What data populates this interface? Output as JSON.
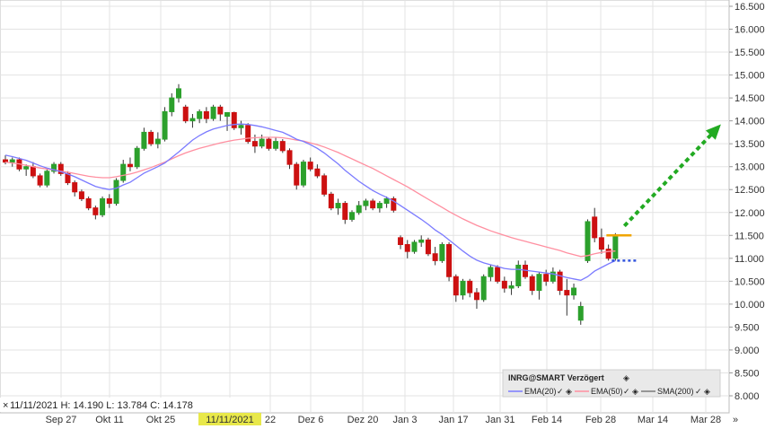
{
  "chart_data": {
    "type": "candlestick",
    "y_ticks": [
      "16.500",
      "16.000",
      "15.500",
      "15.000",
      "14.500",
      "14.000",
      "13.500",
      "13.000",
      "12.500",
      "12.000",
      "11.500",
      "11.000",
      "10.500",
      "10.000",
      "9.500",
      "9.000",
      "8.500",
      "8.000"
    ],
    "ylim": [
      8.0,
      16.5
    ],
    "x_ticks": [
      "Sep 27",
      "Okt 11",
      "Okt 25",
      "11/11/2021",
      "22",
      "Dez 6",
      "Dez 20",
      "Jan 3",
      "Jan 17",
      "Jan 31",
      "Feb 14",
      "Feb 28",
      "Mar 14",
      "Mar 28"
    ],
    "x_end_marker": "»",
    "crosshair": {
      "date": "11/11/2021",
      "ohlc_text": "11/11/2021  H: 14.190  L: 13.784  C: 14.178"
    },
    "legend": {
      "title": "INRG@SMART Verzögert",
      "items": [
        {
          "label": "EMA(20)",
          "color": "#7b7bff"
        },
        {
          "label": "EMA(50)",
          "color": "#ff8fa0"
        },
        {
          "label": "SMA(200)",
          "color": "#7a7a7a"
        }
      ]
    },
    "colors": {
      "up": "#2ca02c",
      "down": "#cc1111",
      "ema20": "#7b7bff",
      "ema50": "#ff8fa0",
      "projection": "#22aa22",
      "resistance": "#f0a500",
      "support": "#3355dd"
    },
    "candles": [
      [
        13.15,
        13.25,
        13.05,
        13.1
      ],
      [
        13.1,
        13.2,
        13.0,
        13.15
      ],
      [
        13.15,
        13.2,
        12.9,
        12.95
      ],
      [
        12.95,
        13.05,
        12.8,
        13.0
      ],
      [
        13.0,
        13.1,
        12.75,
        12.8
      ],
      [
        12.8,
        12.85,
        12.55,
        12.6
      ],
      [
        12.6,
        12.95,
        12.55,
        12.9
      ],
      [
        12.9,
        13.1,
        12.85,
        13.05
      ],
      [
        13.05,
        13.1,
        12.8,
        12.85
      ],
      [
        12.85,
        12.9,
        12.6,
        12.65
      ],
      [
        12.65,
        12.7,
        12.35,
        12.45
      ],
      [
        12.45,
        12.5,
        12.25,
        12.3
      ],
      [
        12.3,
        12.35,
        12.05,
        12.1
      ],
      [
        12.1,
        12.15,
        11.85,
        11.95
      ],
      [
        11.95,
        12.35,
        11.9,
        12.3
      ],
      [
        12.3,
        12.4,
        12.1,
        12.2
      ],
      [
        12.2,
        12.75,
        12.15,
        12.7
      ],
      [
        12.7,
        13.15,
        12.65,
        13.05
      ],
      [
        13.05,
        13.2,
        12.9,
        13.0
      ],
      [
        13.0,
        13.45,
        12.95,
        13.4
      ],
      [
        13.4,
        13.85,
        13.35,
        13.75
      ],
      [
        13.75,
        13.8,
        13.45,
        13.5
      ],
      [
        13.5,
        13.75,
        13.4,
        13.6
      ],
      [
        13.6,
        14.3,
        13.55,
        14.2
      ],
      [
        14.2,
        14.6,
        14.1,
        14.5
      ],
      [
        14.5,
        14.8,
        14.4,
        14.7
      ],
      [
        14.3,
        14.35,
        13.95,
        14.0
      ],
      [
        14.0,
        14.15,
        13.85,
        14.05
      ],
      [
        14.05,
        14.25,
        13.95,
        14.2
      ],
      [
        14.2,
        14.3,
        13.95,
        14.05
      ],
      [
        14.05,
        14.35,
        14.0,
        14.3
      ],
      [
        14.3,
        14.35,
        14.0,
        14.15
      ],
      [
        14.1,
        14.19,
        13.78,
        14.18
      ],
      [
        14.18,
        14.2,
        13.8,
        13.85
      ],
      [
        13.85,
        14.0,
        13.7,
        13.9
      ],
      [
        13.9,
        13.95,
        13.5,
        13.55
      ],
      [
        13.55,
        13.7,
        13.3,
        13.45
      ],
      [
        13.45,
        13.7,
        13.4,
        13.6
      ],
      [
        13.6,
        13.65,
        13.35,
        13.4
      ],
      [
        13.4,
        13.65,
        13.35,
        13.55
      ],
      [
        13.55,
        13.6,
        13.3,
        13.35
      ],
      [
        13.35,
        13.4,
        12.95,
        13.05
      ],
      [
        13.05,
        13.1,
        12.5,
        12.6
      ],
      [
        12.6,
        13.15,
        12.55,
        13.1
      ],
      [
        13.1,
        13.2,
        12.9,
        12.95
      ],
      [
        12.95,
        13.05,
        12.75,
        12.8
      ],
      [
        12.8,
        12.85,
        12.35,
        12.4
      ],
      [
        12.4,
        12.45,
        12.05,
        12.1
      ],
      [
        12.1,
        12.3,
        11.95,
        12.2
      ],
      [
        12.2,
        12.25,
        11.75,
        11.85
      ],
      [
        11.85,
        12.05,
        11.8,
        12.0
      ],
      [
        12.0,
        12.25,
        11.95,
        12.15
      ],
      [
        12.15,
        12.3,
        12.05,
        12.25
      ],
      [
        12.25,
        12.3,
        12.05,
        12.1
      ],
      [
        12.1,
        12.25,
        12.0,
        12.2
      ],
      [
        12.2,
        12.35,
        12.1,
        12.3
      ],
      [
        12.3,
        12.35,
        12.0,
        12.05
      ],
      [
        11.45,
        11.5,
        11.2,
        11.3
      ],
      [
        11.3,
        11.4,
        11.0,
        11.15
      ],
      [
        11.15,
        11.4,
        11.1,
        11.35
      ],
      [
        11.35,
        11.5,
        11.25,
        11.4
      ],
      [
        11.4,
        11.45,
        11.05,
        11.1
      ],
      [
        11.1,
        11.25,
        10.85,
        10.95
      ],
      [
        10.95,
        11.35,
        10.9,
        11.3
      ],
      [
        11.3,
        11.35,
        10.5,
        10.6
      ],
      [
        10.6,
        10.65,
        10.05,
        10.2
      ],
      [
        10.2,
        10.55,
        10.1,
        10.5
      ],
      [
        10.5,
        10.55,
        10.15,
        10.25
      ],
      [
        10.25,
        10.35,
        9.9,
        10.1
      ],
      [
        10.1,
        10.65,
        10.05,
        10.6
      ],
      [
        10.6,
        10.85,
        10.5,
        10.8
      ],
      [
        10.8,
        10.85,
        10.45,
        10.5
      ],
      [
        10.5,
        10.6,
        10.25,
        10.35
      ],
      [
        10.35,
        10.5,
        10.2,
        10.4
      ],
      [
        10.4,
        10.95,
        10.35,
        10.85
      ],
      [
        10.85,
        10.95,
        10.55,
        10.6
      ],
      [
        10.6,
        10.65,
        10.2,
        10.3
      ],
      [
        10.3,
        10.7,
        10.1,
        10.65
      ],
      [
        10.65,
        10.75,
        10.4,
        10.5
      ],
      [
        10.5,
        10.8,
        10.45,
        10.7
      ],
      [
        10.7,
        10.75,
        10.2,
        10.3
      ],
      [
        10.3,
        10.55,
        9.75,
        10.2
      ],
      [
        10.2,
        10.45,
        10.1,
        10.35
      ],
      [
        9.65,
        10.05,
        9.55,
        9.95
      ],
      [
        10.95,
        11.85,
        10.9,
        11.8
      ],
      [
        11.9,
        12.1,
        11.35,
        11.45
      ],
      [
        11.45,
        11.65,
        11.1,
        11.2
      ],
      [
        11.2,
        11.3,
        10.95,
        11.0
      ],
      [
        11.0,
        11.55,
        10.95,
        11.5
      ]
    ],
    "ema20": [
      13.25,
      13.22,
      13.18,
      13.14,
      13.08,
      13.02,
      12.97,
      12.93,
      12.89,
      12.84,
      12.78,
      12.71,
      12.64,
      12.57,
      12.53,
      12.5,
      12.53,
      12.6,
      12.66,
      12.76,
      12.86,
      12.93,
      13.0,
      13.08,
      13.2,
      13.32,
      13.45,
      13.58,
      13.68,
      13.76,
      13.82,
      13.86,
      13.9,
      13.92,
      13.93,
      13.92,
      13.9,
      13.87,
      13.83,
      13.79,
      13.75,
      13.68,
      13.6,
      13.55,
      13.48,
      13.4,
      13.3,
      13.18,
      13.06,
      12.92,
      12.8,
      12.68,
      12.58,
      12.48,
      12.4,
      12.33,
      12.25,
      12.15,
      12.05,
      11.95,
      11.85,
      11.74,
      11.62,
      11.52,
      11.4,
      11.28,
      11.16,
      11.05,
      10.96,
      10.9,
      10.86,
      10.82,
      10.78,
      10.76,
      10.76,
      10.74,
      10.72,
      10.7,
      10.68,
      10.66,
      10.62,
      10.58,
      10.55,
      10.52,
      10.6,
      10.72,
      10.8,
      10.88,
      10.95
    ],
    "ema50": [
      13.1,
      13.08,
      13.06,
      13.03,
      13.0,
      12.97,
      12.95,
      12.93,
      12.9,
      12.88,
      12.85,
      12.82,
      12.79,
      12.77,
      12.76,
      12.76,
      12.78,
      12.81,
      12.84,
      12.88,
      12.93,
      12.98,
      13.04,
      13.1,
      13.17,
      13.24,
      13.3,
      13.35,
      13.4,
      13.44,
      13.48,
      13.52,
      13.55,
      13.58,
      13.6,
      13.62,
      13.63,
      13.64,
      13.64,
      13.64,
      13.63,
      13.61,
      13.58,
      13.56,
      13.52,
      13.48,
      13.43,
      13.37,
      13.31,
      13.24,
      13.17,
      13.1,
      13.03,
      12.96,
      12.88,
      12.8,
      12.72,
      12.64,
      12.56,
      12.47,
      12.38,
      12.29,
      12.2,
      12.11,
      12.02,
      11.94,
      11.86,
      11.79,
      11.72,
      11.66,
      11.6,
      11.55,
      11.5,
      11.45,
      11.41,
      11.37,
      11.33,
      11.29,
      11.25,
      11.21,
      11.17,
      11.12,
      11.08,
      11.04,
      11.06,
      11.1,
      11.13,
      11.15,
      11.16
    ],
    "annotations": {
      "projection_arrow": {
        "from": [
          11.55
        ],
        "to": [
          13.9
        ]
      },
      "resistance_level": 11.5,
      "support_level": 10.95
    }
  }
}
